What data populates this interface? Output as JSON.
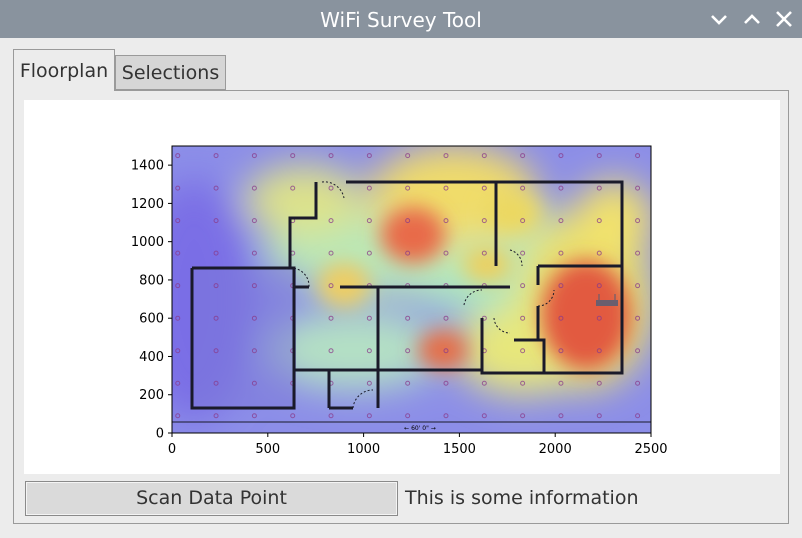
{
  "window": {
    "title": "WiFi Survey Tool",
    "controls": [
      "minimize",
      "maximize",
      "close"
    ]
  },
  "tabs": [
    {
      "label": "Floorplan",
      "active": true
    },
    {
      "label": "Selections",
      "active": false
    }
  ],
  "plot": {
    "x_ticks": [
      "0",
      "500",
      "1000",
      "1500",
      "2000",
      "2500"
    ],
    "y_ticks": [
      "0",
      "200",
      "400",
      "600",
      "800",
      "1000",
      "1200",
      "1400"
    ],
    "scale_label": "← 60' 0\" →"
  },
  "chart_data": {
    "type": "heatmap",
    "xlim": [
      0,
      2500
    ],
    "ylim": [
      0,
      1500
    ],
    "x_ticks": [
      0,
      500,
      1000,
      1500,
      2000,
      2500
    ],
    "y_ticks": [
      0,
      200,
      400,
      600,
      800,
      1000,
      1200,
      1400
    ],
    "grid": false,
    "colormap": "jet",
    "overlay": "floorplan",
    "hotspots": [
      {
        "x": 1260,
        "y": 1030,
        "level": "high"
      },
      {
        "x": 2180,
        "y": 700,
        "level": "high"
      },
      {
        "x": 1420,
        "y": 440,
        "level": "high"
      },
      {
        "x": 900,
        "y": 770,
        "level": "medium"
      },
      {
        "x": 1780,
        "y": 1180,
        "level": "medium"
      },
      {
        "x": 1650,
        "y": 840,
        "level": "medium"
      }
    ]
  },
  "footer": {
    "scan_button": "Scan Data Point",
    "info_text": "This is some information"
  },
  "colors": {
    "titlebar": "#89939e",
    "heatmap_low": "#6a5af0",
    "heatmap_high": "#e84a3a"
  }
}
